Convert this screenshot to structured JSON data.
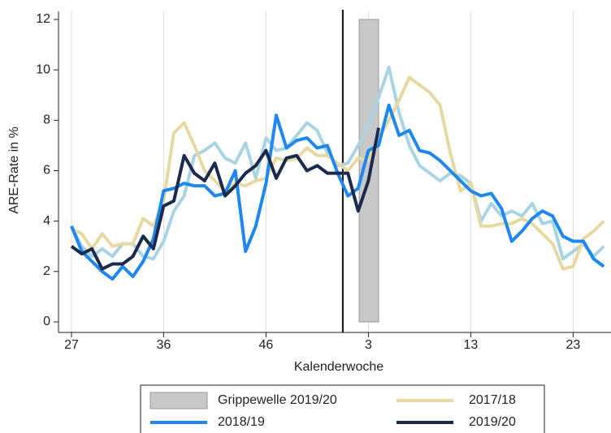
{
  "chart_data": {
    "type": "line",
    "y_label": "ARE-Rate in %",
    "x_label": "Kalenderwoche",
    "categories": [
      "27",
      null,
      null,
      null,
      null,
      null,
      null,
      null,
      null,
      "36",
      null,
      null,
      null,
      null,
      null,
      null,
      null,
      null,
      null,
      "46",
      null,
      null,
      null,
      null,
      null,
      null,
      null,
      null,
      null,
      "3",
      null,
      null,
      null,
      null,
      null,
      null,
      null,
      null,
      null,
      "13",
      null,
      null,
      null,
      null,
      null,
      null,
      null,
      null,
      null,
      "23",
      null,
      null,
      null
    ],
    "ylim": [
      0,
      12
    ],
    "yticks": [
      0,
      2,
      4,
      6,
      8,
      10,
      12
    ],
    "grid": true,
    "vline": 26.5,
    "band": {
      "name": "Grippewelle 2019/20",
      "color": "#c8c8c8",
      "x0": 28.1,
      "x1": 30,
      "y0": 0,
      "y1": 12
    },
    "series": [
      {
        "color": "#a9d4e3",
        "values": [
          3.8,
          3.0,
          2.6,
          2.9,
          2.6,
          3.1,
          3.1,
          2.6,
          2.5,
          3.2,
          4.4,
          5.0,
          6.6,
          6.8,
          7.1,
          6.5,
          6.3,
          7.1,
          5.7,
          7.3,
          6.8,
          6.9,
          7.4,
          7.9,
          7.6,
          6.7,
          6.2,
          6.3,
          7.0,
          7.8,
          8.9,
          10.1,
          8.3,
          7.0,
          6.2,
          5.9,
          5.6,
          5.9,
          5.8,
          5.5,
          4.0,
          4.7,
          4.2,
          4.4,
          4.2,
          4.7,
          3.9,
          4.0,
          2.5,
          2.8,
          3.1,
          2.6,
          3.0
        ]
      },
      {
        "name": "2017/18",
        "color": "#e6d9a2",
        "values": [
          3.7,
          3.5,
          2.9,
          3.5,
          3.0,
          3.1,
          3.1,
          4.1,
          3.8,
          4.8,
          7.5,
          7.9,
          7.0,
          6.0,
          5.6,
          5.2,
          5.5,
          5.4,
          5.6,
          5.7,
          6.5,
          6.4,
          6.5,
          6.9,
          6.6,
          6.6,
          6.3,
          6.0,
          6.5,
          6.4,
          7.3,
          8.0,
          8.8,
          9.7,
          9.4,
          9.1,
          8.6,
          6.7,
          5.2,
          5.5,
          3.8,
          3.8,
          3.9,
          3.9,
          4.1,
          3.9,
          3.5,
          3.1,
          2.1,
          2.2,
          3.3,
          3.6,
          4.0
        ]
      },
      {
        "name": "2018/19",
        "color": "#1e88f0",
        "values": [
          3.8,
          2.8,
          2.4,
          2.0,
          1.7,
          2.2,
          1.8,
          2.4,
          3.3,
          5.2,
          5.3,
          5.5,
          5.4,
          5.4,
          5.0,
          5.1,
          6.0,
          2.8,
          3.8,
          5.5,
          8.2,
          6.9,
          7.2,
          7.3,
          6.9,
          7.0,
          5.9,
          5.0,
          5.3,
          6.8,
          7.0,
          8.6,
          7.4,
          7.6,
          6.8,
          6.7,
          6.4,
          6.0,
          5.6,
          5.2,
          5.0,
          5.1,
          4.5,
          3.2,
          3.6,
          4.1,
          4.4,
          4.2,
          3.4,
          3.2,
          3.2,
          2.5,
          2.2
        ]
      },
      {
        "name": "2019/20",
        "color": "#1b2a4e",
        "values": [
          3.0,
          2.7,
          2.9,
          2.1,
          2.3,
          2.3,
          2.6,
          3.4,
          2.9,
          4.6,
          4.8,
          6.6,
          5.9,
          5.6,
          6.3,
          5.0,
          5.4,
          5.9,
          6.2,
          6.8,
          5.7,
          6.5,
          6.6,
          6.0,
          6.2,
          5.9,
          5.9,
          5.9,
          4.4,
          5.6,
          7.7,
          null,
          null,
          null,
          null,
          null,
          null,
          null,
          null,
          null,
          null,
          null,
          null,
          null,
          null,
          null,
          null,
          null,
          null,
          null,
          null,
          null,
          null
        ]
      }
    ]
  }
}
